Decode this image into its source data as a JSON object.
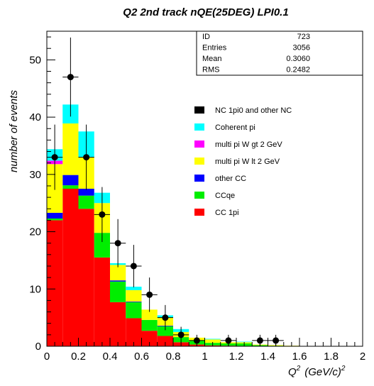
{
  "chart_data": {
    "type": "bar",
    "title": "Q2 2nd track nQE(25DEG) LPI0.1",
    "xlabel_main": "Q",
    "xlabel_sup": "2",
    "xlabel_unit": "(GeV/c)",
    "xlabel_unit_sup": "2",
    "ylabel": "number of events",
    "xlim": [
      0,
      2
    ],
    "ylim": [
      0,
      55
    ],
    "x_ticks": [
      0,
      0.2,
      0.4,
      0.6,
      0.8,
      1,
      1.2,
      1.4,
      1.6,
      1.8,
      2
    ],
    "x_tick_labels": [
      "0",
      "0.2",
      "0.4",
      "0.6",
      "0.8",
      "1",
      "1.2",
      "1.4",
      "1.6",
      "1.8",
      "2"
    ],
    "y_ticks": [
      0,
      10,
      20,
      30,
      40,
      50
    ],
    "y_tick_labels": [
      "0",
      "10",
      "20",
      "30",
      "40",
      "50"
    ],
    "bin_edges": [
      0,
      0.1,
      0.2,
      0.3,
      0.4,
      0.5,
      0.6,
      0.7,
      0.8,
      0.9,
      1.0,
      1.1,
      1.2,
      1.3,
      1.4,
      1.5,
      1.6,
      1.7,
      1.8,
      1.9,
      2.0
    ],
    "stack_order_bottom_to_top": [
      "CC 1pi",
      "CCqe",
      "other CC",
      "multi pi W lt 2 GeV",
      "multi pi W gt 2 GeV",
      "Coherent pi",
      "NC 1pi0 and other NC"
    ],
    "series": [
      {
        "name": "CC 1pi",
        "color": "#ff0000",
        "values": [
          22,
          27.5,
          24,
          15.5,
          7.7,
          4.9,
          2.7,
          1.8,
          0.7,
          0.3,
          0.15,
          0.1,
          0,
          0,
          0,
          0,
          0,
          0,
          0,
          0
        ]
      },
      {
        "name": "CCqe",
        "color": "#00ee00",
        "values": [
          0.3,
          0.6,
          2.3,
          4.3,
          3.6,
          2.8,
          1.9,
          1.7,
          0.9,
          0.7,
          0.45,
          0.4,
          0.5,
          0.2,
          0.1,
          0,
          0,
          0,
          0,
          0
        ]
      },
      {
        "name": "other CC",
        "color": "#0000ff",
        "values": [
          1.0,
          1.8,
          1.2,
          0,
          0.2,
          0.1,
          0,
          0.1,
          0,
          0,
          0,
          0,
          0,
          0,
          0,
          0,
          0,
          0,
          0,
          0
        ]
      },
      {
        "name": "multi pi W lt 2 GeV",
        "color": "#ffff00",
        "values": [
          8.5,
          9.0,
          5.5,
          5.2,
          2.7,
          2.0,
          1.8,
          1.4,
          0.9,
          0.5,
          0.6,
          0.2,
          0.2,
          0.1,
          0.1,
          0.1,
          0.05,
          0.05,
          0,
          0
        ]
      },
      {
        "name": "multi pi W gt 2 GeV",
        "color": "#ff00ff",
        "values": [
          0.6,
          0,
          0,
          0,
          0,
          0,
          0,
          0,
          0,
          0,
          0,
          0,
          0,
          0,
          0,
          0,
          0,
          0,
          0,
          0
        ]
      },
      {
        "name": "Coherent pi",
        "color": "#00ffff",
        "values": [
          2.0,
          3.3,
          4.5,
          1.8,
          0.3,
          0.6,
          0,
          0.4,
          0.5,
          0,
          0.1,
          0,
          0.1,
          0,
          0,
          0,
          0,
          0,
          0,
          0
        ]
      },
      {
        "name": "NC 1pi0 and other NC",
        "color": "#000000",
        "values": [
          0,
          0,
          0,
          0,
          0,
          0,
          0,
          0,
          0,
          0,
          0,
          0,
          0,
          0,
          0,
          0,
          0,
          0,
          0,
          0
        ]
      }
    ],
    "data_points": {
      "x": [
        0.05,
        0.15,
        0.25,
        0.35,
        0.45,
        0.55,
        0.65,
        0.75,
        0.85,
        0.95,
        1.15,
        1.35,
        1.45
      ],
      "y": [
        33,
        47,
        33,
        23,
        18,
        14,
        9,
        5,
        2,
        1,
        1,
        1,
        1
      ],
      "err": [
        5.7,
        6.9,
        5.7,
        4.8,
        4.2,
        3.7,
        3.0,
        2.2,
        1.4,
        1,
        1,
        1,
        1
      ]
    },
    "legend": {
      "placement": "right-middle",
      "entries": [
        "NC 1pi0 and other NC",
        "Coherent pi",
        "multi pi W gt 2 GeV",
        "multi pi W lt 2 GeV",
        "other CC",
        "CCqe",
        "CC 1pi"
      ]
    },
    "stats_box": {
      "rows": [
        {
          "label": "ID",
          "value": "723"
        },
        {
          "label": "Entries",
          "value": "3056"
        },
        {
          "label": "Mean",
          "value": "0.3060"
        },
        {
          "label": "RMS",
          "value": "0.2482"
        }
      ]
    }
  }
}
